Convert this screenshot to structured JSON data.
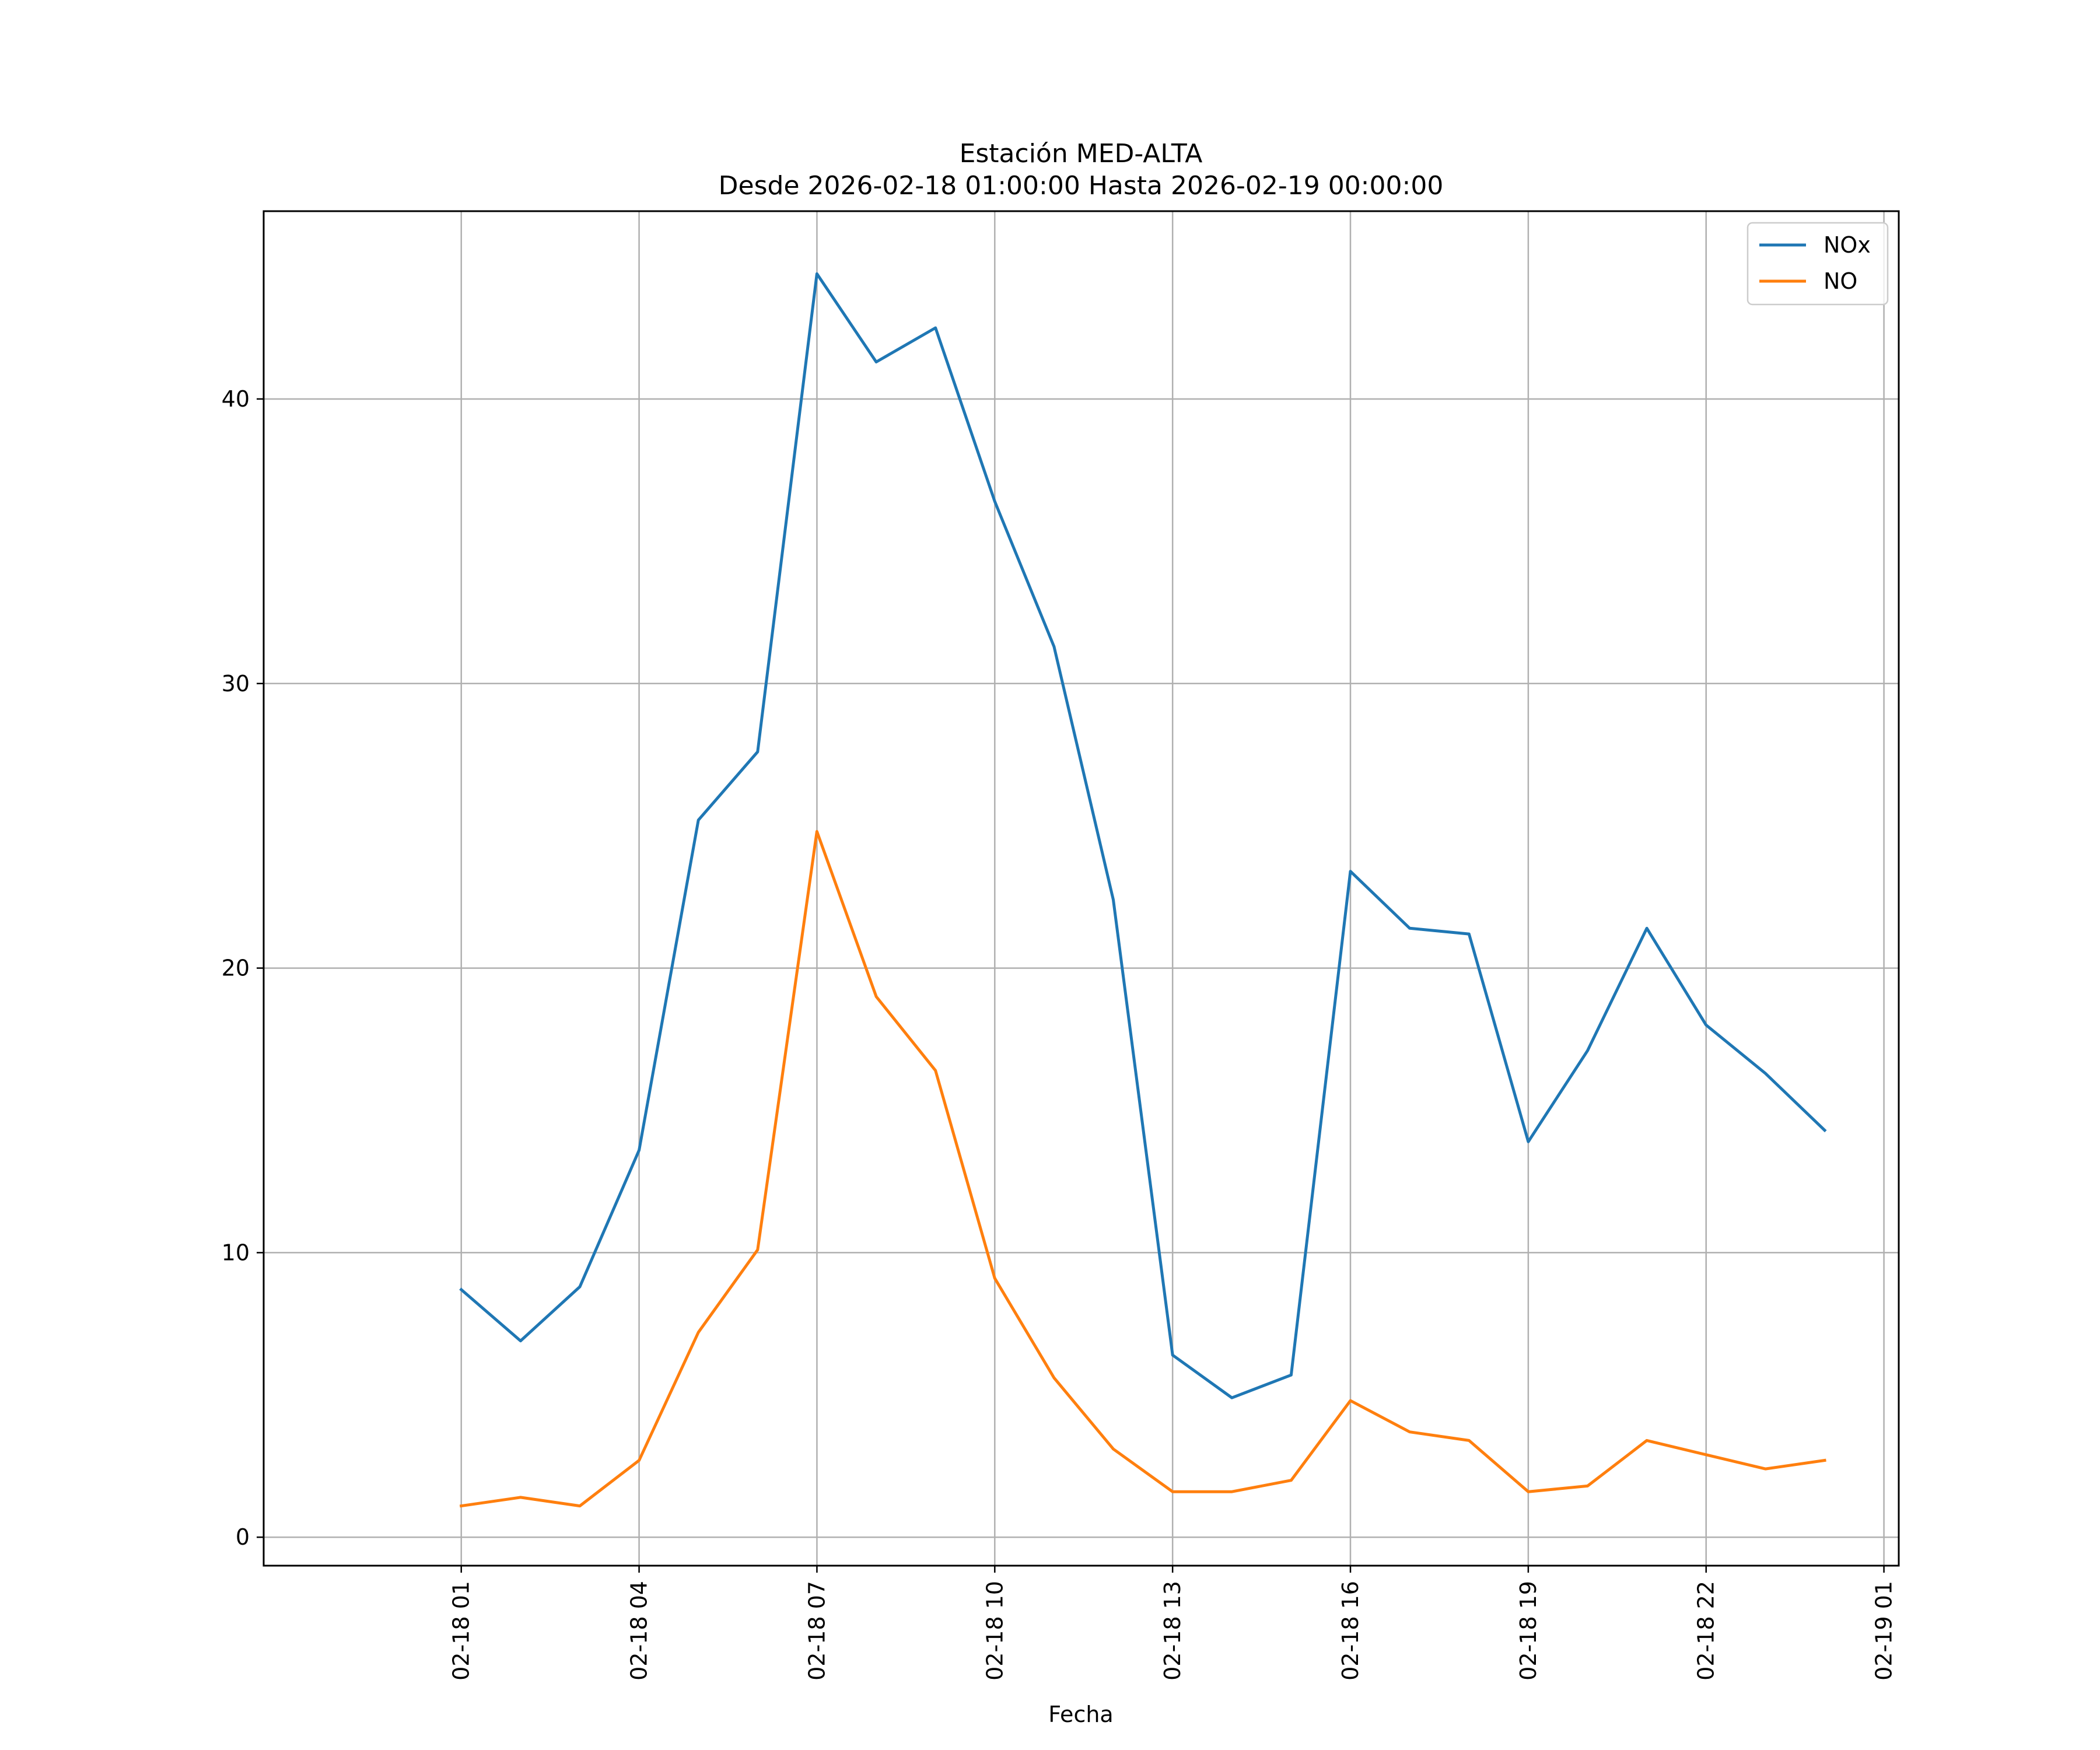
{
  "chart_data": {
    "type": "line",
    "title_line1": "Estación MED-ALTA",
    "title_line2": "Desde 2026-02-18 01:00:00 Hasta 2026-02-19 00:00:00",
    "xlabel": "Fecha",
    "ylabel": "",
    "x": [
      "2026-02-18 01:00",
      "2026-02-18 02:00",
      "2026-02-18 03:00",
      "2026-02-18 04:00",
      "2026-02-18 05:00",
      "2026-02-18 06:00",
      "2026-02-18 07:00",
      "2026-02-18 08:00",
      "2026-02-18 09:00",
      "2026-02-18 10:00",
      "2026-02-18 11:00",
      "2026-02-18 12:00",
      "2026-02-18 13:00",
      "2026-02-18 14:00",
      "2026-02-18 15:00",
      "2026-02-18 16:00",
      "2026-02-18 17:00",
      "2026-02-18 18:00",
      "2026-02-18 19:00",
      "2026-02-18 20:00",
      "2026-02-18 21:00",
      "2026-02-18 22:00",
      "2026-02-18 23:00",
      "2026-02-19 00:00"
    ],
    "series": [
      {
        "name": "NOx",
        "color": "#1f77b4",
        "values": [
          8.7,
          6.9,
          8.8,
          13.6,
          25.2,
          27.6,
          44.4,
          41.3,
          42.5,
          36.4,
          31.3,
          22.4,
          6.4,
          4.9,
          5.7,
          23.4,
          21.4,
          21.2,
          13.9,
          17.1,
          21.4,
          18.0,
          16.3,
          14.3
        ]
      },
      {
        "name": "NO",
        "color": "#ff7f0e",
        "values": [
          1.1,
          1.4,
          1.1,
          2.7,
          7.2,
          10.1,
          24.8,
          19.0,
          16.4,
          9.1,
          5.6,
          3.1,
          1.6,
          1.6,
          2.0,
          4.8,
          3.7,
          3.4,
          1.6,
          1.8,
          3.4,
          2.9,
          2.4,
          2.7
        ]
      }
    ],
    "xlim": [
      "2026-02-17 21:40",
      "2026-02-19 01:15"
    ],
    "ylim": [
      -1,
      46.6
    ],
    "yticks": [
      0,
      10,
      20,
      30,
      40
    ],
    "ytick_labels": [
      "0",
      "10",
      "20",
      "30",
      "40"
    ],
    "xticks": [
      "2026-02-18 01:00",
      "2026-02-18 04:00",
      "2026-02-18 07:00",
      "2026-02-18 10:00",
      "2026-02-18 13:00",
      "2026-02-18 16:00",
      "2026-02-18 19:00",
      "2026-02-18 22:00",
      "2026-02-19 01:00"
    ],
    "xtick_labels": [
      "02-18 01",
      "02-18 04",
      "02-18 07",
      "02-18 10",
      "02-18 13",
      "02-18 16",
      "02-18 19",
      "02-18 22",
      "02-19 01"
    ],
    "grid": true,
    "legend_position": "top-right"
  }
}
